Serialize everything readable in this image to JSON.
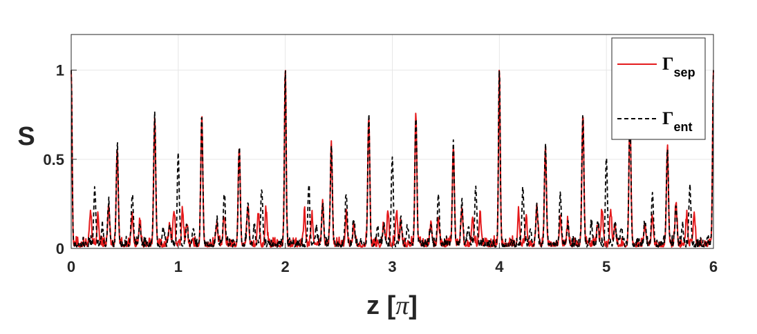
{
  "chart_data": {
    "type": "line",
    "xlabel": "z [π]",
    "xlabel_main": "z [",
    "xlabel_symbol": "π",
    "xlabel_close": "]",
    "ylabel": "S",
    "xlim": [
      0,
      6
    ],
    "ylim": [
      0,
      1.2
    ],
    "xticks": [
      0,
      1,
      2,
      3,
      4,
      5,
      6
    ],
    "xtick_labels": [
      "0",
      "1",
      "2",
      "3",
      "4",
      "5",
      "6"
    ],
    "yticks": [
      0,
      0.5,
      1
    ],
    "ytick_labels": [
      "0",
      "0.5",
      "1"
    ],
    "grid": true,
    "legend_position": "top-right",
    "series": [
      {
        "name": "Γsep",
        "symbol": "Γ",
        "subscript": "sep",
        "color": "#e41a1c",
        "style": "solid",
        "peaks": [
          [
            0,
            1.0
          ],
          [
            0.18,
            0.18
          ],
          [
            0.25,
            0.16
          ],
          [
            0.35,
            0.22
          ],
          [
            0.43,
            0.55
          ],
          [
            0.57,
            0.16
          ],
          [
            0.64,
            0.12
          ],
          [
            0.78,
            0.72
          ],
          [
            0.92,
            0.12
          ],
          [
            0.96,
            0.19
          ],
          [
            1.04,
            0.19
          ],
          [
            1.08,
            0.12
          ],
          [
            1.22,
            0.72
          ],
          [
            1.36,
            0.12
          ],
          [
            1.43,
            0.16
          ],
          [
            1.57,
            0.55
          ],
          [
            1.65,
            0.22
          ],
          [
            1.75,
            0.16
          ],
          [
            1.82,
            0.18
          ],
          [
            2,
            1.0
          ],
          [
            2.18,
            0.18
          ],
          [
            2.25,
            0.16
          ],
          [
            2.35,
            0.22
          ],
          [
            2.43,
            0.55
          ],
          [
            2.57,
            0.16
          ],
          [
            2.64,
            0.12
          ],
          [
            2.78,
            0.72
          ],
          [
            2.92,
            0.12
          ],
          [
            2.96,
            0.19
          ],
          [
            3.04,
            0.19
          ],
          [
            3.08,
            0.12
          ],
          [
            3.22,
            0.72
          ],
          [
            3.36,
            0.12
          ],
          [
            3.43,
            0.16
          ],
          [
            3.57,
            0.55
          ],
          [
            3.65,
            0.22
          ],
          [
            3.75,
            0.16
          ],
          [
            3.82,
            0.18
          ],
          [
            4,
            1.0
          ],
          [
            4.18,
            0.18
          ],
          [
            4.25,
            0.16
          ],
          [
            4.35,
            0.22
          ],
          [
            4.43,
            0.55
          ],
          [
            4.57,
            0.16
          ],
          [
            4.64,
            0.12
          ],
          [
            4.78,
            0.72
          ],
          [
            4.92,
            0.12
          ],
          [
            4.96,
            0.19
          ],
          [
            5.04,
            0.19
          ],
          [
            5.08,
            0.12
          ],
          [
            5.22,
            0.72
          ],
          [
            5.36,
            0.12
          ],
          [
            5.43,
            0.16
          ],
          [
            5.57,
            0.55
          ],
          [
            5.65,
            0.22
          ],
          [
            5.75,
            0.16
          ],
          [
            5.82,
            0.18
          ],
          [
            6,
            1.0
          ]
        ]
      },
      {
        "name": "Γent",
        "symbol": "Γ",
        "subscript": "ent",
        "color": "#000000",
        "style": "dashed",
        "peaks": [
          [
            0,
            1.0
          ],
          [
            0.22,
            0.32
          ],
          [
            0.29,
            0.1
          ],
          [
            0.35,
            0.23
          ],
          [
            0.43,
            0.55
          ],
          [
            0.57,
            0.29
          ],
          [
            0.64,
            0.12
          ],
          [
            0.78,
            0.72
          ],
          [
            0.86,
            0.1
          ],
          [
            0.92,
            0.12
          ],
          [
            1,
            0.5
          ],
          [
            1.08,
            0.12
          ],
          [
            1.14,
            0.1
          ],
          [
            1.22,
            0.72
          ],
          [
            1.36,
            0.12
          ],
          [
            1.43,
            0.29
          ],
          [
            1.57,
            0.55
          ],
          [
            1.65,
            0.23
          ],
          [
            1.71,
            0.1
          ],
          [
            1.78,
            0.32
          ],
          [
            2,
            1.0
          ],
          [
            2.22,
            0.32
          ],
          [
            2.29,
            0.1
          ],
          [
            2.35,
            0.23
          ],
          [
            2.43,
            0.55
          ],
          [
            2.57,
            0.29
          ],
          [
            2.64,
            0.12
          ],
          [
            2.78,
            0.72
          ],
          [
            2.86,
            0.1
          ],
          [
            2.92,
            0.12
          ],
          [
            3,
            0.5
          ],
          [
            3.08,
            0.12
          ],
          [
            3.14,
            0.1
          ],
          [
            3.22,
            0.72
          ],
          [
            3.36,
            0.12
          ],
          [
            3.43,
            0.29
          ],
          [
            3.57,
            0.55
          ],
          [
            3.65,
            0.23
          ],
          [
            3.71,
            0.1
          ],
          [
            3.78,
            0.32
          ],
          [
            4,
            1.0
          ],
          [
            4.22,
            0.32
          ],
          [
            4.29,
            0.1
          ],
          [
            4.35,
            0.23
          ],
          [
            4.43,
            0.55
          ],
          [
            4.57,
            0.29
          ],
          [
            4.64,
            0.12
          ],
          [
            4.78,
            0.72
          ],
          [
            4.86,
            0.1
          ],
          [
            4.92,
            0.12
          ],
          [
            5,
            0.5
          ],
          [
            5.08,
            0.12
          ],
          [
            5.14,
            0.1
          ],
          [
            5.22,
            0.72
          ],
          [
            5.36,
            0.12
          ],
          [
            5.43,
            0.29
          ],
          [
            5.57,
            0.55
          ],
          [
            5.65,
            0.23
          ],
          [
            5.71,
            0.1
          ],
          [
            5.78,
            0.32
          ],
          [
            6,
            1.0
          ]
        ]
      }
    ]
  }
}
